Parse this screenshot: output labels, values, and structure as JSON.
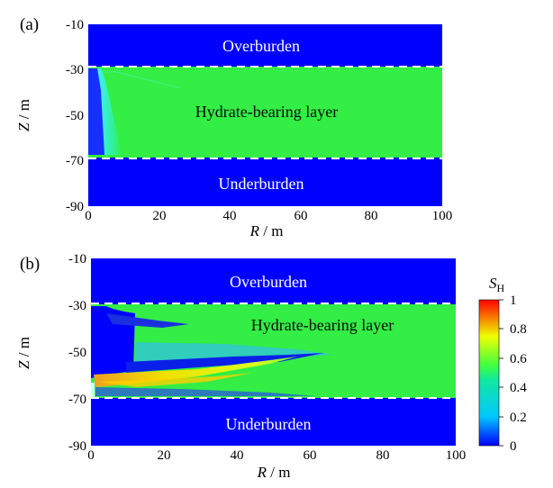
{
  "chart_data": [
    {
      "type": "heatmap",
      "panel_label": "(a)",
      "xlabel_var": "R",
      "xlabel_unit": " / m",
      "ylabel_var": "Z",
      "ylabel_unit": " / m",
      "xlim": [
        0,
        100
      ],
      "ylim": [
        -90,
        -10
      ],
      "x_ticks": [
        0,
        20,
        40,
        60,
        80,
        100
      ],
      "y_ticks": [
        -10,
        -30,
        -50,
        -70,
        -90
      ],
      "boundaries_z": [
        -30,
        -70
      ],
      "zones": {
        "overburden": "Overburden",
        "layer": "Hydrate-bearing layer",
        "underburden": "Underburden"
      },
      "field": "S_H",
      "background_sh": 0.5,
      "confining_sh": 0,
      "dissociation_front_r": {
        "top": 6,
        "bottom": 10
      }
    },
    {
      "type": "heatmap",
      "panel_label": "(b)",
      "xlabel_var": "R",
      "xlabel_unit": " / m",
      "ylabel_var": "Z",
      "ylabel_unit": " / m",
      "xlim": [
        0,
        100
      ],
      "ylim": [
        -90,
        -10
      ],
      "x_ticks": [
        0,
        20,
        40,
        60,
        80,
        100
      ],
      "y_ticks": [
        -10,
        -30,
        -50,
        -70,
        -90
      ],
      "boundaries_z": [
        -30,
        -70
      ],
      "zones": {
        "overburden": "Overburden",
        "layer": "Hydrate-bearing layer",
        "underburden": "Underburden"
      },
      "field": "S_H",
      "background_sh": 0.5,
      "confining_sh": 0,
      "secondary_hydrate_band": {
        "max_sh": 0.85,
        "extent_r": 60
      }
    }
  ],
  "colorbar": {
    "title_main": "S",
    "title_sub": "H",
    "ticks": [
      "1",
      "0.8",
      "0.6",
      "0.4",
      "0.2",
      "0"
    ],
    "stops": [
      "#0000ff",
      "#00c8ff",
      "#00ff80",
      "#ffff00",
      "#ff0000"
    ]
  }
}
